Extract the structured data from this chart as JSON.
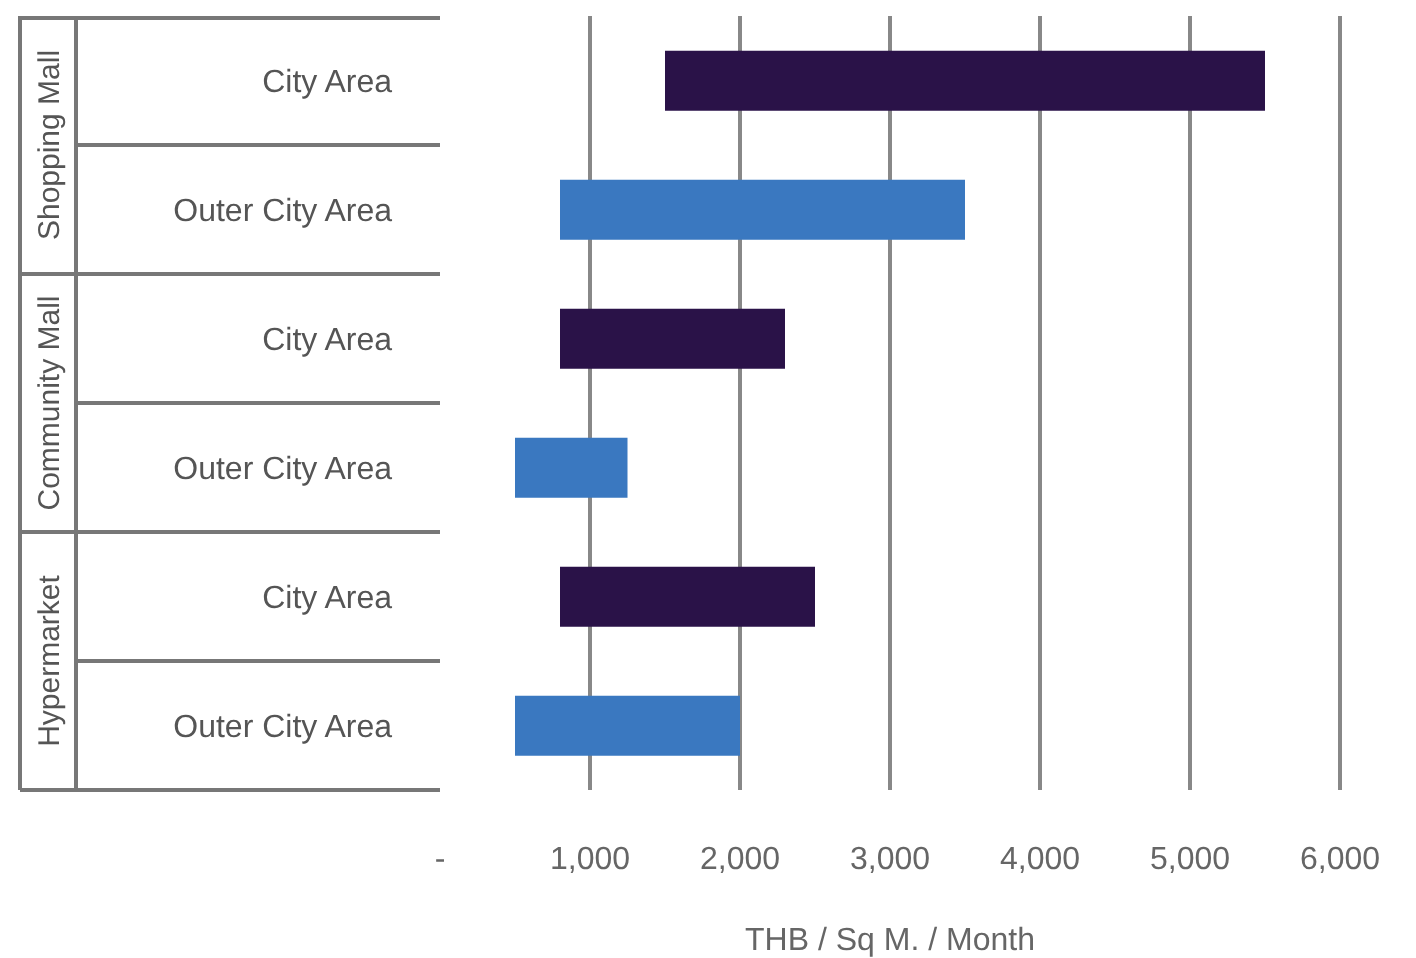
{
  "chart_data": {
    "type": "bar",
    "orientation": "horizontal",
    "xlabel": "THB / Sq M. / Month",
    "categories": [
      "City Area",
      "Outer City Area",
      "City Area",
      "Outer City Area",
      "City Area",
      "Outer City Area"
    ],
    "base": [
      1500,
      800,
      800,
      500,
      800,
      500
    ],
    "values": [
      4000,
      2700,
      1500,
      750,
      1700,
      1500
    ],
    "colors": [
      "#2a1248",
      "#3a78c0",
      "#2a1248",
      "#3a78c0",
      "#2a1248",
      "#3a78c0"
    ],
    "annotations": [
      "Shopping Mall",
      "Community Mall",
      "Hypermarket"
    ],
    "xlim": [
      0,
      6000
    ],
    "xticks": [
      {
        "value": 0,
        "label": "-"
      },
      {
        "value": 1000,
        "label": "1,000"
      },
      {
        "value": 2000,
        "label": "2,000"
      },
      {
        "value": 3000,
        "label": "3,000"
      },
      {
        "value": 4000,
        "label": "4,000"
      },
      {
        "value": 5000,
        "label": "5,000"
      },
      {
        "value": 6000,
        "label": "6,000"
      }
    ],
    "grid": "x",
    "legend": false
  }
}
